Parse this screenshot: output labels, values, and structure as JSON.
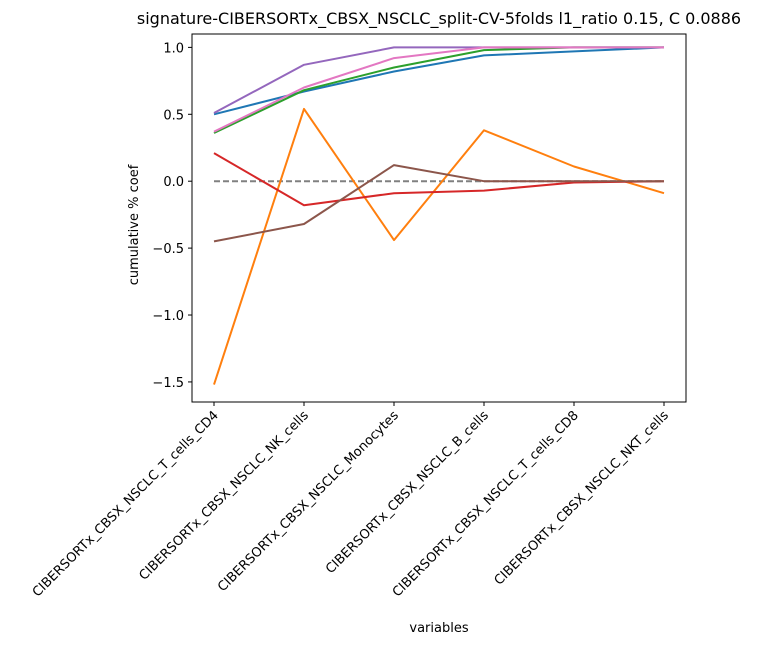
{
  "chart_data": {
    "type": "line",
    "title": "signature-CIBERSORTx_CBSX_NSCLC_split-CV-5folds l1_ratio 0.15, C 0.0886",
    "xlabel": "variables",
    "ylabel": "cumulative % coef",
    "categories": [
      "CIBERSORTx_CBSX_NSCLC_T_cells_CD4",
      "CIBERSORTx_CBSX_NSCLC_NK_cells",
      "CIBERSORTx_CBSX_NSCLC_Monocytes",
      "CIBERSORTx_CBSX_NSCLC_B_cells",
      "CIBERSORTx_CBSX_NSCLC_T_cells_CD8",
      "CIBERSORTx_CBSX_NSCLC_NKT_cells"
    ],
    "ylim": [
      -1.65,
      1.1
    ],
    "yticks": [
      -1.5,
      -1.0,
      -0.5,
      0.0,
      0.5,
      1.0
    ],
    "ytick_labels": [
      "−1.5",
      "−1.0",
      "−0.5",
      "0.0",
      "0.5",
      "1.0"
    ],
    "baseline": {
      "y": 0.0,
      "color": "#808080",
      "style": "dashed"
    },
    "grid": false,
    "series": [
      {
        "color": "#1f77b4",
        "values": [
          0.5,
          0.67,
          0.82,
          0.94,
          0.97,
          1.0
        ]
      },
      {
        "color": "#ff7f0e",
        "values": [
          -1.52,
          0.54,
          -0.44,
          0.38,
          0.11,
          -0.09
        ]
      },
      {
        "color": "#2ca02c",
        "values": [
          0.36,
          0.68,
          0.85,
          0.98,
          1.0,
          1.0
        ]
      },
      {
        "color": "#d62728",
        "values": [
          0.21,
          -0.18,
          -0.09,
          -0.07,
          -0.01,
          0.0
        ]
      },
      {
        "color": "#9467bd",
        "values": [
          0.51,
          0.87,
          1.0,
          1.0,
          1.0,
          1.0
        ]
      },
      {
        "color": "#8c564b",
        "values": [
          -0.45,
          -0.32,
          0.12,
          0.0,
          0.0,
          0.0
        ]
      },
      {
        "color": "#e377c2",
        "values": [
          0.37,
          0.7,
          0.92,
          1.0,
          1.0,
          1.0
        ]
      }
    ]
  }
}
